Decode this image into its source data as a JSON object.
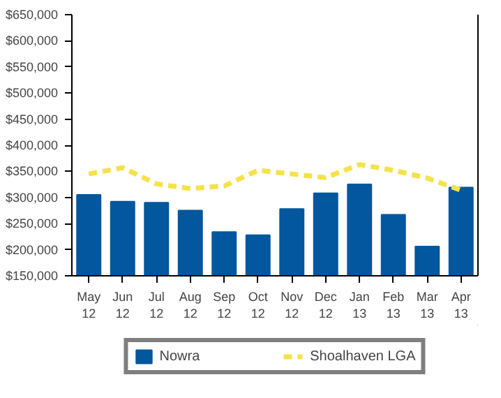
{
  "chart_data": {
    "type": "bar",
    "categories": [
      "May\n12",
      "Jun\n12",
      "Jul\n12",
      "Aug\n12",
      "Sep\n12",
      "Oct\n12",
      "Nov\n12",
      "Dec\n12",
      "Jan\n13",
      "Feb\n13",
      "Mar\n13",
      "Apr\n13"
    ],
    "series": [
      {
        "name": "Nowra",
        "color": "#02579e",
        "values": [
          305000,
          292000,
          290000,
          275000,
          234000,
          228000,
          278000,
          308000,
          325000,
          267000,
          206000,
          319000
        ]
      },
      {
        "name": "Shoalhaven LGA",
        "type": "line",
        "color": "#f5e24a",
        "line_style": "dashed",
        "values": [
          345000,
          357000,
          326000,
          317000,
          322000,
          352000,
          345000,
          338000,
          363000,
          352000,
          337000,
          314000
        ]
      }
    ],
    "ylim": [
      150000,
      650000
    ],
    "yticks": [
      {
        "value": 150000,
        "label": "$150,000"
      },
      {
        "value": 200000,
        "label": "$200,000"
      },
      {
        "value": 250000,
        "label": "$250,000"
      },
      {
        "value": 300000,
        "label": "$300,000"
      },
      {
        "value": 350000,
        "label": "$350,000"
      },
      {
        "value": 400000,
        "label": "$400,000"
      },
      {
        "value": 450000,
        "label": "$450,000"
      },
      {
        "value": 500000,
        "label": "$500,000"
      },
      {
        "value": 550000,
        "label": "$550,000"
      },
      {
        "value": 600000,
        "label": "$600,000"
      },
      {
        "value": 650000,
        "label": "$650,000"
      }
    ],
    "grid": false,
    "legend": "bottom"
  }
}
